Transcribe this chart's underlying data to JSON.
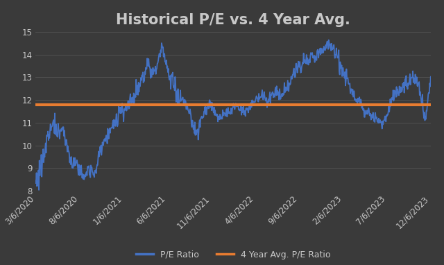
{
  "title": "Historical P/E vs. 4 Year Avg.",
  "background_color": "#3a3a3a",
  "plot_bg_color": "#3a3a3a",
  "text_color": "#c8c8c8",
  "grid_color": "#555555",
  "avg_pe": 11.8,
  "avg_pe_color": "#e87c30",
  "pe_line_color": "#4472c4",
  "ylim": [
    8,
    15
  ],
  "yticks": [
    8,
    9,
    10,
    11,
    12,
    13,
    14,
    15
  ],
  "x_labels": [
    "3/6/2020",
    "8/6/2020",
    "1/6/2021",
    "6/6/2021",
    "11/6/2021",
    "4/6/2022",
    "9/6/2022",
    "2/6/2023",
    "7/6/2023",
    "12/6/2023"
  ],
  "legend_pe_label": "P/E Ratio",
  "legend_avg_label": "4 Year Avg. P/E Ratio",
  "title_fontsize": 15,
  "tick_fontsize": 8.5,
  "legend_fontsize": 9
}
